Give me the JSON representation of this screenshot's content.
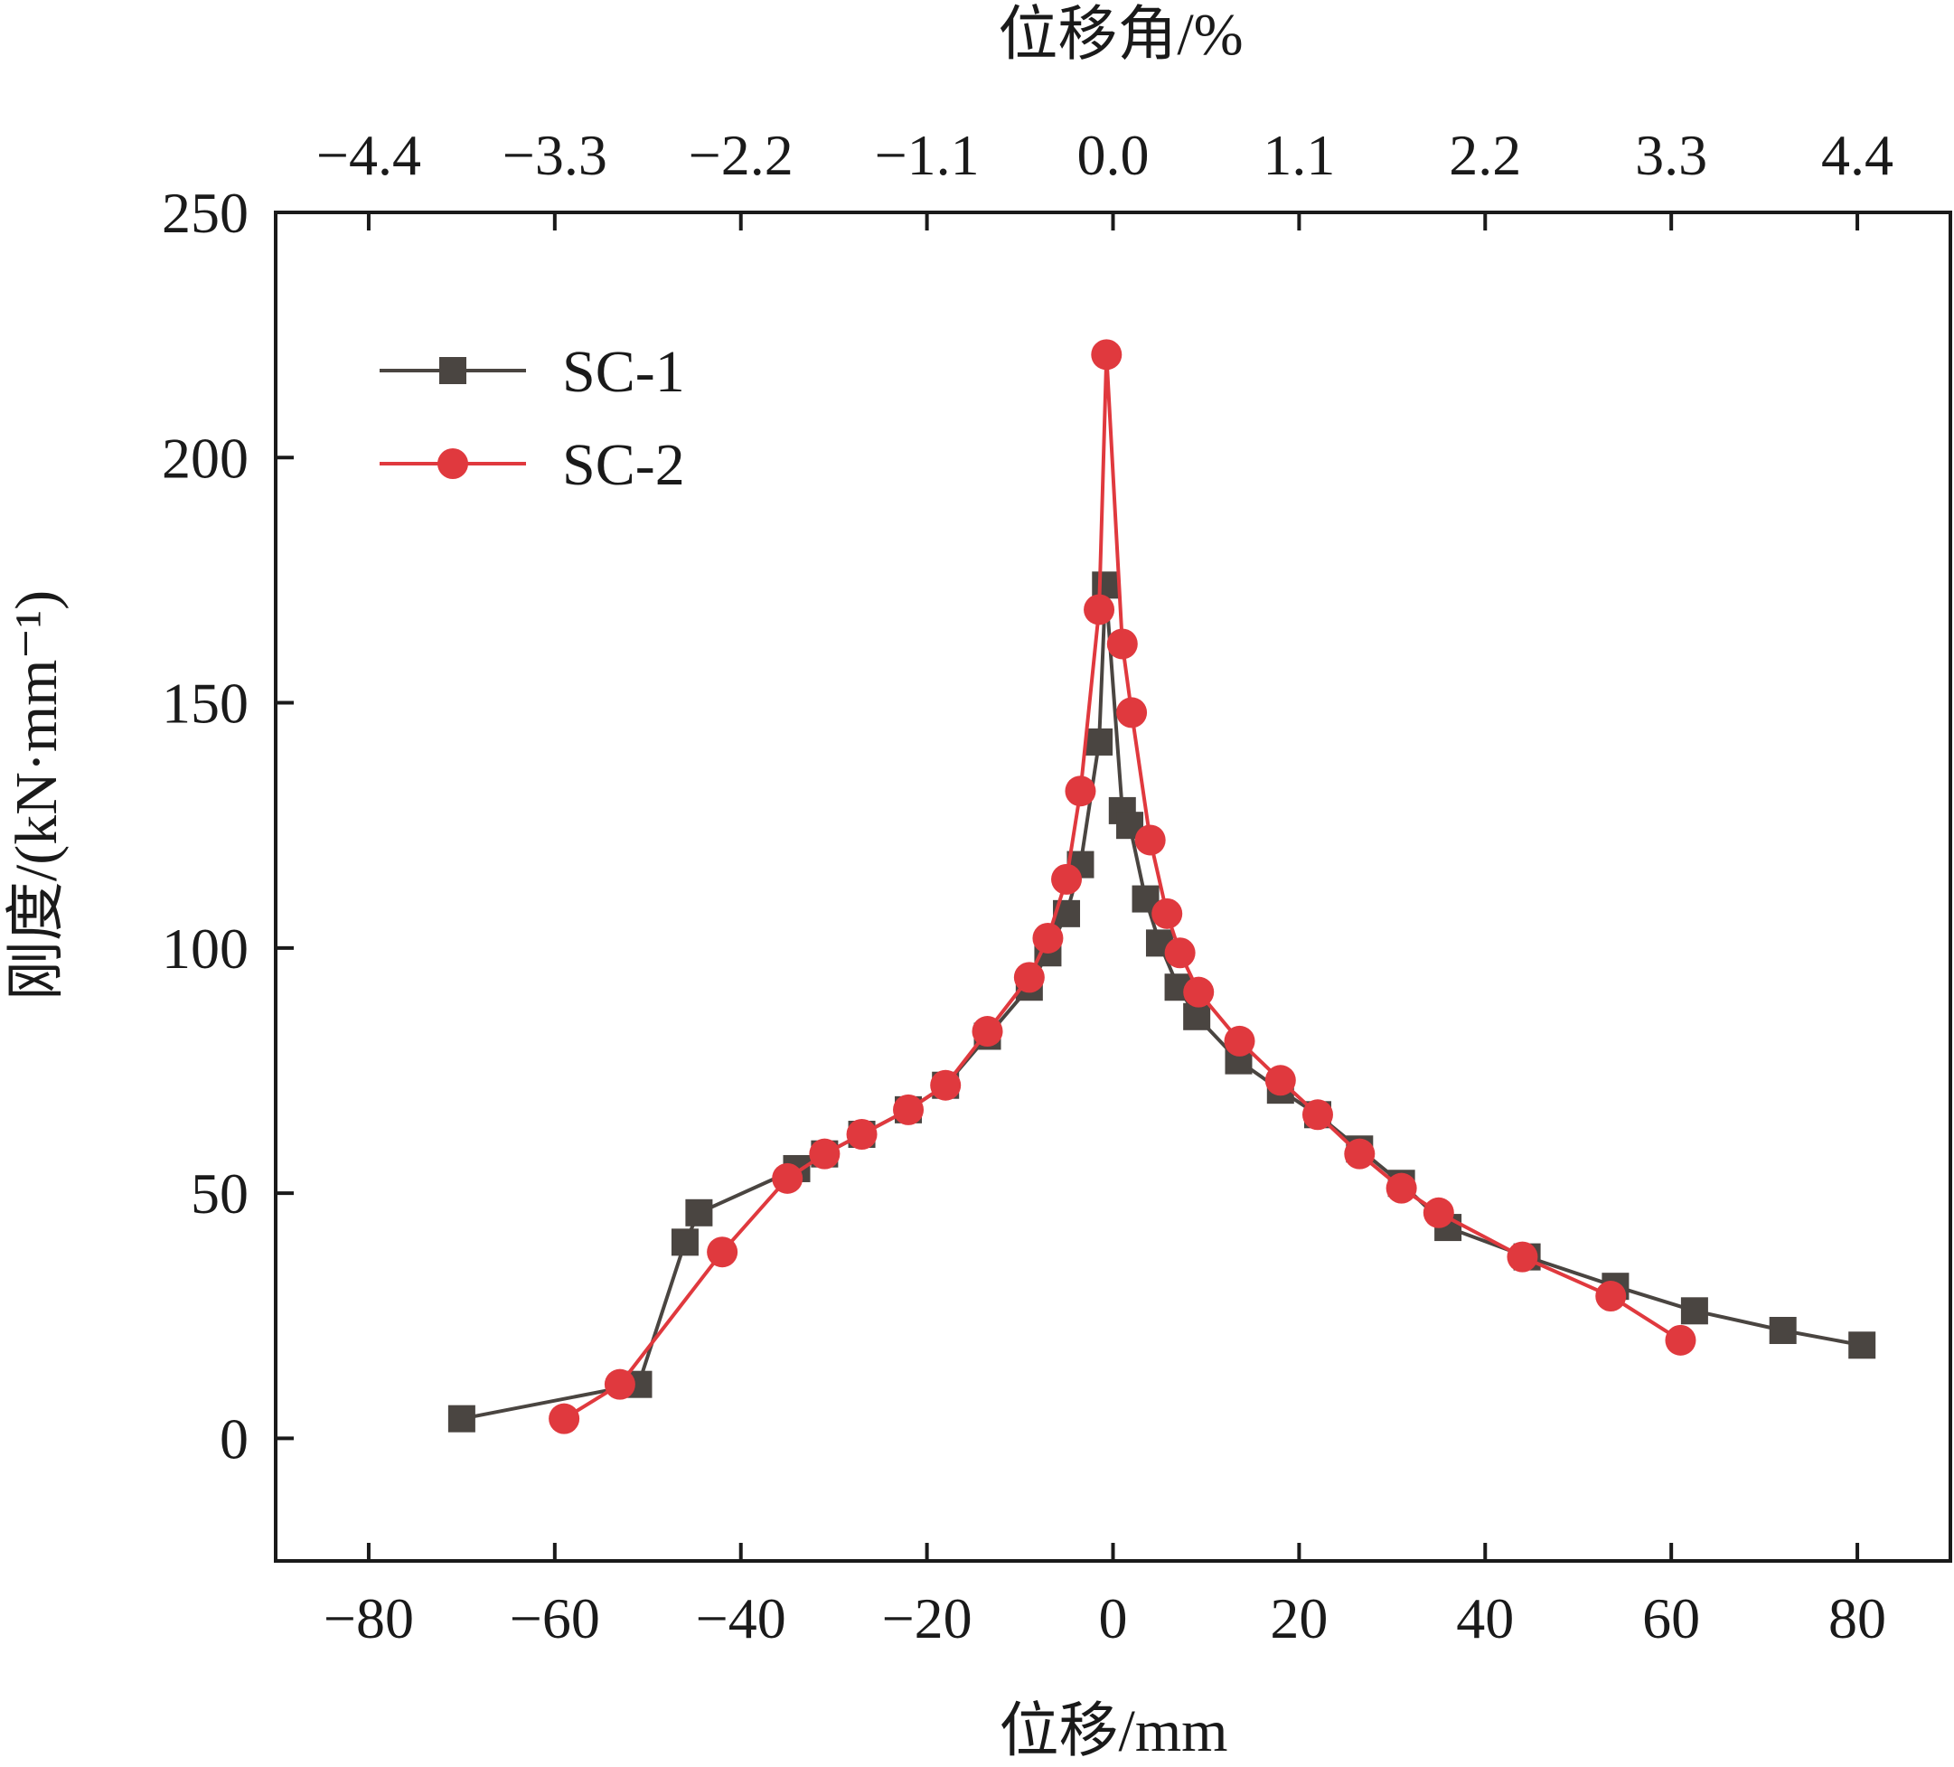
{
  "chart_data": {
    "type": "line",
    "xlabel": "位移/mm",
    "ylabel": "刚度/(kN·mm⁻¹)",
    "x2label": "位移角/%",
    "xlim": [
      -90,
      90
    ],
    "ylim": [
      -25,
      250
    ],
    "xticks": [
      -80,
      -60,
      -40,
      -20,
      0,
      20,
      40,
      60,
      80
    ],
    "xtick_labels": [
      "−80",
      "−60",
      "−40",
      "−20",
      "0",
      "20",
      "40",
      "60",
      "80"
    ],
    "yticks": [
      0,
      50,
      100,
      150,
      200,
      250
    ],
    "ytick_labels": [
      "0",
      "50",
      "100",
      "150",
      "200",
      "250"
    ],
    "x2ticks": [
      -4.4,
      -3.3,
      -2.2,
      -1.1,
      0.0,
      1.1,
      2.2,
      3.3,
      4.4
    ],
    "x2tick_labels": [
      "−4.4",
      "−3.3",
      "−2.2",
      "−1.1",
      "0.0",
      "1.1",
      "2.2",
      "3.3",
      "4.4"
    ],
    "legend_position": "top-left",
    "grid": false,
    "series": [
      {
        "name": "SC-1",
        "color": "#4a4541",
        "marker": "square",
        "points": [
          [
            -70,
            4
          ],
          [
            -51,
            11
          ],
          [
            -46,
            40
          ],
          [
            -44.5,
            46
          ],
          [
            -34,
            55
          ],
          [
            -31,
            58
          ],
          [
            -27,
            62
          ],
          [
            -22,
            67
          ],
          [
            -18,
            72
          ],
          [
            -13.5,
            82
          ],
          [
            -9,
            92
          ],
          [
            -7,
            99
          ],
          [
            -5,
            107
          ],
          [
            -3.5,
            117
          ],
          [
            -1.5,
            142
          ],
          [
            -0.8,
            174
          ],
          [
            1,
            128
          ],
          [
            1.8,
            125
          ],
          [
            3.5,
            110
          ],
          [
            5,
            101
          ],
          [
            7,
            92
          ],
          [
            9,
            86
          ],
          [
            13.5,
            77
          ],
          [
            18,
            71
          ],
          [
            22,
            66
          ],
          [
            26.5,
            59
          ],
          [
            31,
            52
          ],
          [
            36,
            43
          ],
          [
            44.5,
            37
          ],
          [
            54,
            31
          ],
          [
            62.5,
            26
          ],
          [
            72,
            22
          ],
          [
            80.5,
            19
          ]
        ]
      },
      {
        "name": "SC-2",
        "color": "#e0393e",
        "marker": "circle",
        "points": [
          [
            -59,
            4
          ],
          [
            -53,
            11
          ],
          [
            -42,
            38
          ],
          [
            -35,
            53
          ],
          [
            -31,
            58
          ],
          [
            -27,
            62
          ],
          [
            -22,
            67
          ],
          [
            -18,
            72
          ],
          [
            -13.5,
            83
          ],
          [
            -9,
            94
          ],
          [
            -7,
            102
          ],
          [
            -5,
            114
          ],
          [
            -3.5,
            132
          ],
          [
            -1.5,
            169
          ],
          [
            -0.7,
            221
          ],
          [
            1,
            162
          ],
          [
            2,
            148
          ],
          [
            4,
            122
          ],
          [
            5.8,
            107
          ],
          [
            7.2,
            99
          ],
          [
            9.2,
            91
          ],
          [
            13.6,
            81
          ],
          [
            18,
            73
          ],
          [
            22,
            66
          ],
          [
            26.5,
            58
          ],
          [
            31,
            51
          ],
          [
            35,
            46
          ],
          [
            44,
            37
          ],
          [
            53.5,
            29
          ],
          [
            61,
            20
          ]
        ]
      }
    ]
  }
}
